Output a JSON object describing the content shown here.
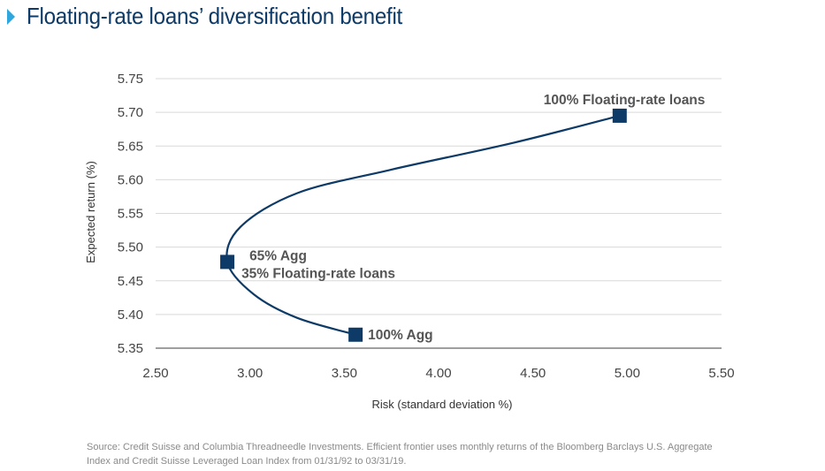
{
  "header": {
    "title": "Floating-rate loans’ diversification benefit"
  },
  "chart_data": {
    "type": "line",
    "title": "Floating-rate loans’ diversification benefit",
    "xlabel": "Risk (standard deviation %)",
    "ylabel": "Expected return (%)",
    "xlim": [
      2.5,
      5.5
    ],
    "ylim": [
      5.35,
      5.75
    ],
    "x_ticks": [
      "2.50",
      "3.00",
      "3.50",
      "4.00",
      "4.50",
      "5.00",
      "5.50"
    ],
    "y_ticks": [
      "5.35",
      "5.40",
      "5.45",
      "5.50",
      "5.55",
      "5.60",
      "5.65",
      "5.70",
      "5.75"
    ],
    "grid": "horizontal",
    "legend": "none",
    "series": [
      {
        "values_xy": [
          [
            3.56,
            5.37
          ],
          [
            3.25,
            5.395
          ],
          [
            3.02,
            5.43
          ],
          [
            2.88,
            5.478
          ],
          [
            2.95,
            5.53
          ],
          [
            3.25,
            5.58
          ],
          [
            3.75,
            5.615
          ],
          [
            4.4,
            5.655
          ],
          [
            4.96,
            5.695
          ]
        ]
      }
    ],
    "points": [
      {
        "x": 4.96,
        "y": 5.695,
        "label_lines": [
          "100% Floating-rate loans"
        ]
      },
      {
        "x": 2.88,
        "y": 5.478,
        "label_lines": [
          "65% Agg",
          "35% Floating-rate loans"
        ]
      },
      {
        "x": 3.56,
        "y": 5.37,
        "label_lines": [
          "100% Agg"
        ]
      }
    ],
    "colors": {
      "line": "#0d3a66",
      "marker": "#0d3a66",
      "grid": "#d9d9d9"
    }
  },
  "footer": {
    "source_line1": "Source: Credit Suisse and Columbia Threadneedle Investments. Efficient frontier uses monthly returns of the Bloomberg Barclays U.S. Aggregate",
    "source_line2": "Index and Credit Suisse Leveraged Loan Index from 01/31/92 to 03/31/19."
  }
}
